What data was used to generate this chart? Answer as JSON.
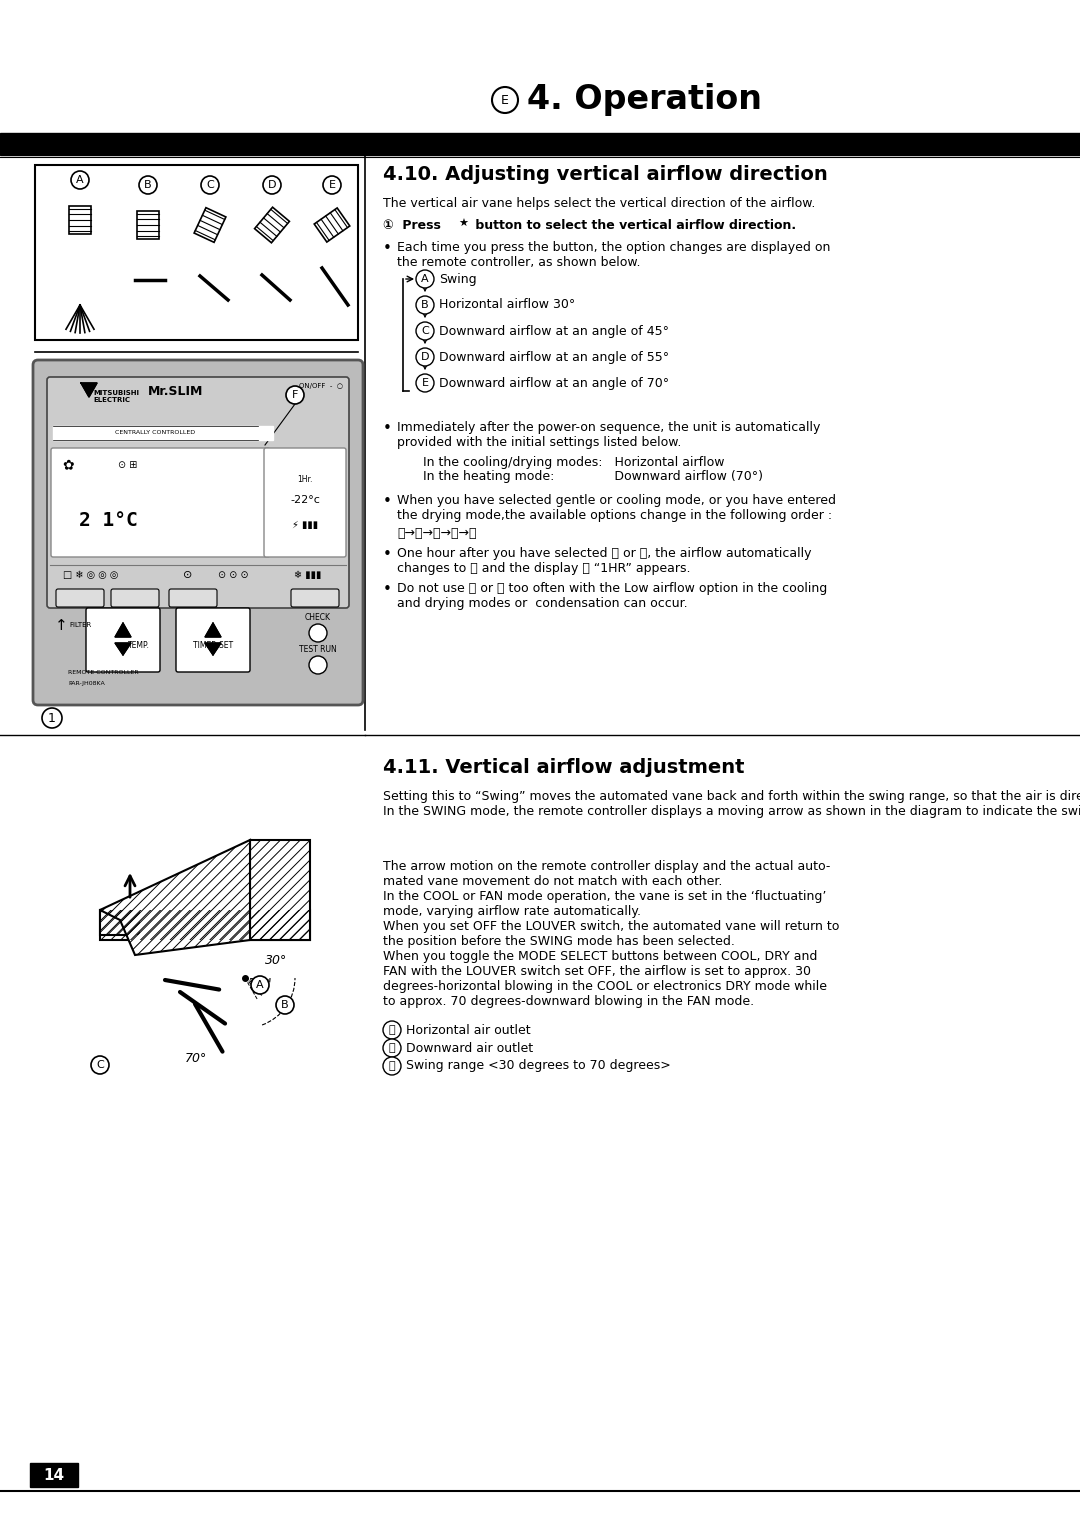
{
  "page_bg": "#ffffff",
  "section1_title": "4.10. Adjusting vertical airflow direction",
  "section1_intro": "The vertical air vane helps select the vertical direction of the airflow.",
  "flow_items": [
    [
      "A",
      "Swing"
    ],
    [
      "B",
      "Horizontal airflow 30°"
    ],
    [
      "C",
      "Downward airflow at an angle of 45°"
    ],
    [
      "D",
      "Downward airflow at an angle of 55°"
    ],
    [
      "E",
      "Downward airflow at an angle of 70°"
    ]
  ],
  "section2_title": "4.11. Vertical airflow adjustment",
  "section2_para1": "Setting this to “Swing” moves the automated vane back and forth within the swing range, so that the air is directed upwards and downwards.\nIn the SWING mode, the remote controller displays a moving arrow as shown in the diagram to indicate the swinging automated vane.",
  "section2_para2a": "The arrow motion on the remote controller display and the actual auto-\nmated vane movement do not match with each other.\nIn the COOL or FAN mode operation, the vane is set in the ‘fluctuating’\nmode, varying airflow rate automatically.\nWhen you set OFF the LOUVER switch, the automated vane will return to\nthe position before the SWING mode has been selected.\nWhen you toggle the MODE SELECT buttons between COOL, DRY and\nFAN with the LOUVER switch set OFF, the airflow is set to approx. 30\ndegrees-horizontal blowing in the COOL or electronics DRY mode while\nto approx. 70 degrees-downward blowing in the FAN mode.",
  "section2_legend": [
    [
      "Ⓐ",
      "Horizontal air outlet"
    ],
    [
      "Ⓑ",
      "Downward air outlet"
    ],
    [
      "Ⓒ",
      "Swing range <30 degrees to 70 degrees>"
    ]
  ],
  "page_number": "14"
}
